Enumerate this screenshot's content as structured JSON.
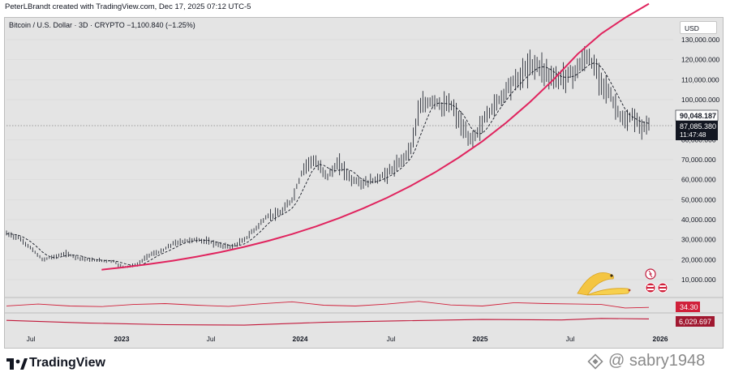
{
  "header": {
    "text": "PeterLBrandt created with TradingView.com, Dec 17, 2025 07:12 UTC-5"
  },
  "symbol": {
    "text": "Bitcoin / U.S. Dollar · 3D · CRYPTO  −1,100.840 (−1.25%)"
  },
  "currency": "USD",
  "footer": {
    "brand": "TradingView",
    "watermark": "@ sabry1948"
  },
  "colors": {
    "background": "#e4e4e4",
    "curve": "#e0245e",
    "candles": "#131722",
    "price_tag": "#131722",
    "rsi_tag": "#d0203a"
  },
  "icons": [
    "tradingview-logo-icon",
    "banana-icon",
    "flag-badge-icon",
    "watermark-logo-icon"
  ],
  "chart_data": {
    "type": "line",
    "x_ticks": [
      "Jul",
      "2023",
      "Jul",
      "2024",
      "Jul",
      "2025",
      "Jul",
      "2026"
    ],
    "y_ticks": [
      "130,000.000",
      "120,000.000",
      "110,000.000",
      "100,000.000",
      "80,000.000",
      "70,000.000",
      "60,000.000",
      "50,000.000",
      "40,000.000",
      "30,000.000",
      "20,000.000",
      "10,000.000"
    ],
    "price_tag": {
      "value": "87,085.380",
      "countdown": "11:47:48"
    },
    "high_tag": "90,048.187",
    "indicator_tags": {
      "rsi": "34.30",
      "volume": "6,029.697"
    },
    "price_series": [
      [
        0,
        33000
      ],
      [
        3,
        31000
      ],
      [
        6,
        26000
      ],
      [
        9,
        20000
      ],
      [
        12,
        21500
      ],
      [
        15,
        23000
      ],
      [
        18,
        21000
      ],
      [
        21,
        19800
      ],
      [
        24,
        19500
      ],
      [
        27,
        19200
      ],
      [
        28.5,
        17000
      ],
      [
        30,
        16500
      ],
      [
        33,
        17500
      ],
      [
        36,
        22500
      ],
      [
        39,
        24000
      ],
      [
        42,
        28000
      ],
      [
        45,
        29500
      ],
      [
        48,
        30000
      ],
      [
        51,
        29000
      ],
      [
        54,
        27000
      ],
      [
        57,
        26500
      ],
      [
        60,
        30000
      ],
      [
        63,
        36000
      ],
      [
        66,
        42000
      ],
      [
        69,
        43000
      ],
      [
        72,
        50000
      ],
      [
        75,
        66000
      ],
      [
        77,
        70000
      ],
      [
        79,
        66000
      ],
      [
        81,
        62000
      ],
      [
        84,
        68000
      ],
      [
        87,
        60000
      ],
      [
        90,
        58000
      ],
      [
        93,
        60000
      ],
      [
        96,
        63000
      ],
      [
        99,
        68000
      ],
      [
        102,
        76000
      ],
      [
        104,
        95000
      ],
      [
        106,
        98000
      ],
      [
        108,
        100000
      ],
      [
        110,
        96000
      ],
      [
        112,
        98000
      ],
      [
        114,
        90000
      ],
      [
        116,
        82000
      ],
      [
        117,
        80000
      ],
      [
        119,
        84000
      ],
      [
        121,
        92000
      ],
      [
        123,
        97000
      ],
      [
        125,
        102000
      ],
      [
        127,
        108000
      ],
      [
        129,
        110000
      ],
      [
        131,
        115000
      ],
      [
        133,
        118000
      ],
      [
        135,
        116000
      ],
      [
        137,
        112000
      ],
      [
        139,
        110000
      ],
      [
        141,
        112000
      ],
      [
        143,
        113000
      ],
      [
        145,
        118000
      ],
      [
        146.5,
        122000
      ],
      [
        148,
        117000
      ],
      [
        150,
        110000
      ],
      [
        152,
        103000
      ],
      [
        154,
        95000
      ],
      [
        156,
        88000
      ],
      [
        158,
        92000
      ],
      [
        160,
        86000
      ],
      [
        162,
        87085
      ]
    ],
    "curve_series": [
      [
        24,
        15000
      ],
      [
        30,
        16300
      ],
      [
        36,
        17800
      ],
      [
        42,
        19500
      ],
      [
        48,
        21500
      ],
      [
        54,
        23800
      ],
      [
        60,
        26400
      ],
      [
        66,
        29400
      ],
      [
        72,
        32800
      ],
      [
        78,
        36600
      ],
      [
        84,
        40900
      ],
      [
        90,
        45700
      ],
      [
        96,
        51000
      ],
      [
        102,
        57000
      ],
      [
        108,
        63600
      ],
      [
        114,
        71000
      ],
      [
        120,
        79200
      ],
      [
        126,
        88500
      ],
      [
        132,
        98800
      ],
      [
        138,
        110200
      ],
      [
        144,
        122800
      ],
      [
        150,
        133000
      ],
      [
        156,
        141000
      ],
      [
        162,
        148000
      ]
    ],
    "rsi_series": [
      [
        0,
        45
      ],
      [
        8,
        58
      ],
      [
        16,
        44
      ],
      [
        24,
        40
      ],
      [
        32,
        55
      ],
      [
        40,
        62
      ],
      [
        48,
        50
      ],
      [
        56,
        42
      ],
      [
        64,
        60
      ],
      [
        72,
        75
      ],
      [
        80,
        50
      ],
      [
        88,
        44
      ],
      [
        96,
        58
      ],
      [
        104,
        78
      ],
      [
        112,
        52
      ],
      [
        120,
        44
      ],
      [
        128,
        68
      ],
      [
        136,
        62
      ],
      [
        144,
        58
      ],
      [
        150,
        55
      ],
      [
        156,
        30
      ],
      [
        162,
        34.3
      ]
    ],
    "volume_series": [
      [
        0,
        55
      ],
      [
        20,
        35
      ],
      [
        40,
        22
      ],
      [
        60,
        18
      ],
      [
        80,
        40
      ],
      [
        100,
        52
      ],
      [
        120,
        62
      ],
      [
        140,
        58
      ],
      [
        150,
        70
      ],
      [
        162,
        66
      ]
    ]
  }
}
